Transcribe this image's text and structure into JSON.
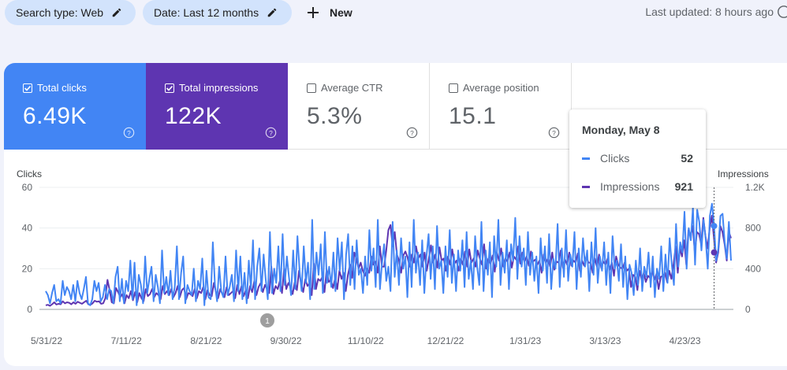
{
  "filters": {
    "search_type": "Search type: Web",
    "date": "Date: Last 12 months",
    "new_label": "New"
  },
  "last_updated": "Last updated: 8 hours ago",
  "metrics": [
    {
      "label": "Total clicks",
      "value": "6.49K",
      "checked": true,
      "color": "#4285f4"
    },
    {
      "label": "Total impressions",
      "value": "122K",
      "checked": true,
      "color": "#5e35b1"
    },
    {
      "label": "Average CTR",
      "value": "5.3%",
      "checked": false
    },
    {
      "label": "Average position",
      "value": "15.1",
      "checked": false
    }
  ],
  "tooltip": {
    "date": "Monday, May 8",
    "rows": [
      {
        "label": "Clicks",
        "value": "52",
        "color": "#4285f4"
      },
      {
        "label": "Impressions",
        "value": "921",
        "color": "#5e35b1"
      }
    ]
  },
  "chart_data": {
    "type": "line",
    "left_axis_label": "Clicks",
    "right_axis_label": "Impressions",
    "left_ticks": [
      "0",
      "20",
      "40",
      "60"
    ],
    "right_ticks": [
      "0",
      "400",
      "800",
      "1.2K"
    ],
    "ylim_left": [
      0,
      60
    ],
    "ylim_right": [
      0,
      1200
    ],
    "x_tick_labels": [
      "5/31/22",
      "7/11/22",
      "8/21/22",
      "9/30/22",
      "11/10/22",
      "12/21/22",
      "1/31/23",
      "3/13/23",
      "4/23/23"
    ],
    "annotation": "1",
    "series": [
      {
        "name": "Clicks",
        "axis": "left",
        "color": "#4285f4",
        "values": [
          9,
          7,
          3,
          8,
          12,
          4,
          5,
          3,
          14,
          7,
          11,
          9,
          5,
          12,
          4,
          14,
          8,
          5,
          10,
          16,
          3,
          2,
          5,
          14,
          9,
          13,
          4,
          6,
          12,
          5,
          10,
          9,
          3,
          16,
          21,
          4,
          15,
          3,
          14,
          9,
          24,
          5,
          23,
          2,
          17,
          12,
          3,
          26,
          8,
          15,
          21,
          4,
          17,
          11,
          3,
          29,
          8,
          16,
          7,
          19,
          5,
          11,
          31,
          5,
          18,
          26,
          3,
          12,
          9,
          7,
          20,
          4,
          14,
          10,
          25,
          2,
          19,
          6,
          5,
          33,
          12,
          4,
          21,
          9,
          6,
          26,
          7,
          11,
          17,
          4,
          29,
          9,
          26,
          5,
          18,
          3,
          24,
          10,
          34,
          5,
          21,
          30,
          9,
          27,
          15,
          5,
          38,
          8,
          20,
          13,
          31,
          9,
          37,
          12,
          26,
          16,
          7,
          29,
          10,
          36,
          19,
          9,
          31,
          13,
          23,
          5,
          44,
          10,
          28,
          17,
          32,
          8,
          38,
          13,
          21,
          11,
          28,
          9,
          35,
          19,
          33,
          5,
          27,
          37,
          12,
          31,
          10,
          34,
          17,
          20,
          8,
          26,
          12,
          39,
          19,
          30,
          11,
          44,
          10,
          23,
          32,
          14,
          21,
          9,
          43,
          16,
          29,
          12,
          35,
          20,
          26,
          6,
          33,
          11,
          44,
          18,
          28,
          12,
          34,
          8,
          26,
          37,
          15,
          31,
          10,
          41,
          20,
          24,
          8,
          31,
          16,
          39,
          13,
          27,
          9,
          29,
          19,
          34,
          11,
          38,
          15,
          24,
          10,
          36,
          21,
          12,
          43,
          9,
          29,
          17,
          33,
          6,
          36,
          21,
          44,
          12,
          28,
          18,
          34,
          10,
          32,
          24,
          45,
          15,
          36,
          21,
          30,
          12,
          38,
          17,
          28,
          14,
          26,
          8,
          35,
          19,
          31,
          13,
          37,
          10,
          25,
          20,
          42,
          11,
          30,
          16,
          39,
          14,
          27,
          21,
          38,
          10,
          30,
          16,
          35,
          21,
          29,
          9,
          33,
          17,
          40,
          13,
          26,
          19,
          33,
          12,
          28,
          8,
          36,
          20,
          24,
          14,
          32,
          11,
          26,
          5,
          22,
          18,
          7,
          24,
          12,
          30,
          9,
          21,
          16,
          28,
          11,
          26,
          6,
          20,
          15,
          31,
          9,
          27,
          13,
          35,
          22,
          12,
          42,
          21,
          33,
          28,
          48,
          20,
          40,
          34,
          50,
          22,
          49,
          43,
          29,
          44,
          35,
          20,
          46,
          52,
          41,
          24,
          30,
          46,
          47,
          33,
          25,
          43,
          24
        ]
      },
      {
        "name": "Impressions",
        "axis": "right",
        "color": "#5e35b1",
        "values": [
          40,
          45,
          35,
          50,
          70,
          48,
          55,
          50,
          80,
          60,
          70,
          65,
          50,
          70,
          55,
          75,
          65,
          55,
          70,
          85,
          50,
          45,
          60,
          85,
          75,
          80,
          55,
          60,
          110,
          290,
          190,
          70,
          60,
          210,
          170,
          120,
          150,
          60,
          140,
          110,
          180,
          90,
          170,
          70,
          160,
          110,
          80,
          200,
          130,
          150,
          200,
          120,
          160,
          140,
          100,
          230,
          150,
          180,
          140,
          200,
          120,
          160,
          230,
          120,
          190,
          210,
          100,
          160,
          150,
          130,
          200,
          110,
          180,
          160,
          220,
          100,
          190,
          140,
          130,
          260,
          170,
          110,
          200,
          150,
          120,
          220,
          140,
          160,
          180,
          110,
          240,
          150,
          230,
          130,
          190,
          110,
          230,
          170,
          280,
          140,
          220,
          260,
          170,
          240,
          200,
          160,
          420,
          150,
          230,
          200,
          280,
          160,
          400,
          200,
          260,
          220,
          150,
          270,
          190,
          380,
          250,
          170,
          300,
          230,
          260,
          140,
          450,
          200,
          300,
          280,
          320,
          170,
          390,
          270,
          290,
          210,
          310,
          200,
          380,
          300,
          360,
          180,
          340,
          440,
          310,
          560,
          500,
          400,
          460,
          380,
          330,
          400,
          360,
          520,
          440,
          470,
          360,
          620,
          420,
          420,
          580,
          780,
          830,
          620,
          760,
          540,
          480,
          360,
          530,
          570,
          510,
          420,
          540,
          460,
          620,
          500,
          540,
          420,
          560,
          380,
          500,
          630,
          460,
          540,
          410,
          610,
          480,
          500,
          380,
          520,
          440,
          590,
          450,
          480,
          380,
          500,
          440,
          570,
          420,
          590,
          460,
          500,
          420,
          580,
          500,
          440,
          640,
          400,
          500,
          450,
          530,
          370,
          560,
          480,
          600,
          420,
          500,
          470,
          560,
          410,
          520,
          490,
          620,
          450,
          560,
          470,
          520,
          430,
          570,
          470,
          490,
          440,
          480,
          360,
          540,
          460,
          500,
          420,
          560,
          390,
          470,
          460,
          580,
          410,
          490,
          440,
          560,
          430,
          480,
          460,
          550,
          380,
          480,
          430,
          520,
          460,
          460,
          360,
          500,
          420,
          540,
          410,
          470,
          440,
          500,
          390,
          460,
          330,
          520,
          440,
          410,
          400,
          460,
          380,
          400,
          220,
          340,
          320,
          190,
          380,
          290,
          360,
          270,
          330,
          310,
          380,
          290,
          350,
          200,
          320,
          330,
          360,
          270,
          380,
          300,
          440,
          620,
          360,
          600,
          520,
          680,
          440,
          780,
          720,
          820,
          560,
          760,
          740,
          640,
          900,
          720,
          600,
          800,
          921,
          700,
          460,
          560,
          820,
          760,
          640,
          480,
          760,
          700
        ]
      }
    ]
  }
}
